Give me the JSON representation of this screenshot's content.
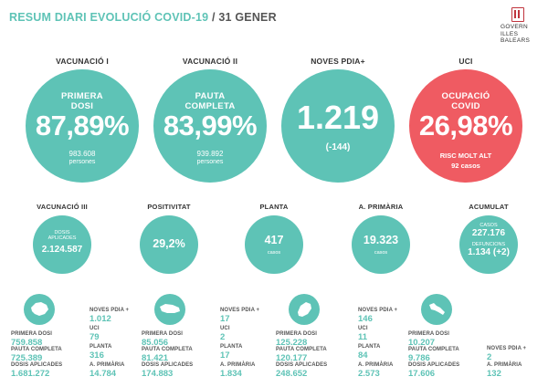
{
  "header": {
    "title_main": "RESUM DIARI EVOLUCIÓ COVID-19",
    "separator": "/",
    "title_date": "31 GENER",
    "logo_lines": [
      "GOVERN",
      "ILLES",
      "BALEARS"
    ]
  },
  "top": {
    "vac1": {
      "head": "VACUNACIÓ I",
      "line1": "PRIMERA",
      "line2": "DOSI",
      "pct": "87,89%",
      "sub1": "983.608",
      "sub2": "persones"
    },
    "vac2": {
      "head": "VACUNACIÓ II",
      "line1": "PAUTA",
      "line2": "COMPLETA",
      "pct": "83,99%",
      "sub1": "939.892",
      "sub2": "persones"
    },
    "noves": {
      "head": "NOVES PDIA+",
      "value": "1.219",
      "sub": "(-144)"
    },
    "uci": {
      "head": "UCI",
      "line1": "OCUPACIÓ",
      "line2": "COVID",
      "pct": "26,98%",
      "risk": "RISC MOLT ALT",
      "cases": "92 casos"
    }
  },
  "middle": {
    "vac3": {
      "head": "VACUNACIÓ III",
      "cap1": "DOSIS",
      "cap2": "APLICADES",
      "value": "2.124.587"
    },
    "positivitat": {
      "head": "POSITIVITAT",
      "value": "29,2%"
    },
    "planta": {
      "head": "PLANTA",
      "value": "417",
      "cap": "casos"
    },
    "aprimaria": {
      "head": "A. PRIMÀRIA",
      "value": "19.323",
      "cap": "casos"
    },
    "acumulat": {
      "head": "ACUMULAT",
      "cap1": "CASOS",
      "value1": "227.176",
      "cap2": "DEFUNCIONS",
      "value2": "1.134 (+2)"
    }
  },
  "islands": [
    {
      "name": "mallorca-icon",
      "primera_label": "PRIMERA DOSI",
      "primera": "759.858",
      "pauta_label": "PAUTA COMPLETA",
      "pauta": "725.389",
      "dosis_label": "DOSIS APLICADES",
      "dosis": "1.681.272",
      "noves_label": "NOVES PDIA +",
      "noves": "1.012",
      "uci_label": "UCI",
      "uci": "79",
      "planta_label": "PLANTA",
      "planta": "316",
      "ap_label": "A. PRIMÀRIA",
      "ap": "14.784"
    },
    {
      "name": "menorca-icon",
      "primera_label": "PRIMERA DOSI",
      "primera": "85.056",
      "pauta_label": "PAUTA COMPLETA",
      "pauta": "81.421",
      "dosis_label": "DOSIS APLICADES",
      "dosis": "174.883",
      "noves_label": "NOVES PDIA +",
      "noves": "17",
      "uci_label": "UCI",
      "uci": "2",
      "planta_label": "PLANTA",
      "planta": "17",
      "ap_label": "A. PRIMÀRIA",
      "ap": "1.834"
    },
    {
      "name": "eivissa-icon",
      "primera_label": "PRIMERA DOSI",
      "primera": "125.228",
      "pauta_label": "PAUTA COMPLETA",
      "pauta": "120.177",
      "dosis_label": "DOSIS APLICADES",
      "dosis": "248.652",
      "noves_label": "NOVES PDIA +",
      "noves": "146",
      "uci_label": "UCI",
      "uci": "11",
      "planta_label": "PLANTA",
      "planta": "84",
      "ap_label": "A. PRIMÀRIA",
      "ap": "2.573"
    },
    {
      "name": "formentera-icon",
      "primera_label": "PRIMERA DOSI",
      "primera": "10.207",
      "pauta_label": "PAUTA COMPLETA",
      "pauta": "9.786",
      "dosis_label": "DOSIS APLICADES",
      "dosis": "17.606",
      "noves_label": "NOVES PDIA +",
      "noves": "2",
      "ap_label": "A. PRIMÀRIA",
      "ap": "132"
    }
  ],
  "colors": {
    "teal": "#5ec3b6",
    "red": "#ef5b62",
    "logo_red": "#c0343d"
  }
}
